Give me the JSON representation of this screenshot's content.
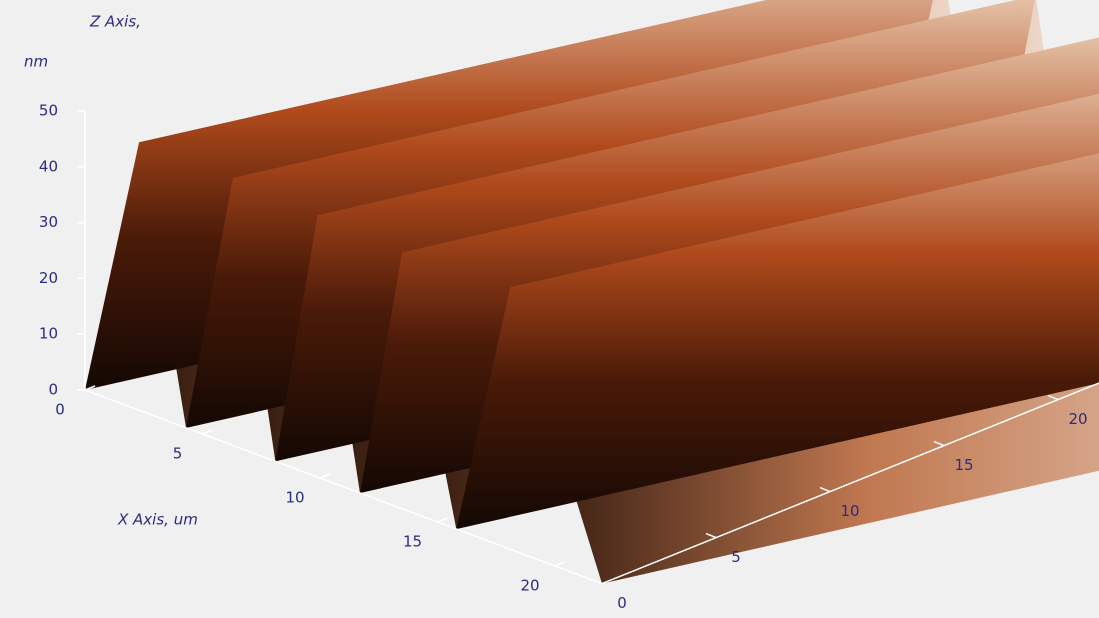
{
  "chart_data": {
    "type": "surface3d",
    "zlabel": "Z Axis,",
    "zunit": "nm",
    "xlabel": "X Axis, um",
    "x": [
      2.3,
      6.3,
      9.9,
      13.5,
      18.1
    ],
    "values": [
      48,
      48,
      47,
      46,
      47
    ],
    "xlim": [
      0,
      22
    ],
    "ylim": [
      0,
      22
    ],
    "zlim": [
      0,
      50
    ],
    "xticks": [
      0,
      5,
      10,
      15,
      20
    ],
    "yticks": [
      0,
      5,
      10,
      15,
      20
    ],
    "zticks": [
      0,
      10,
      20,
      30,
      40,
      50
    ]
  }
}
